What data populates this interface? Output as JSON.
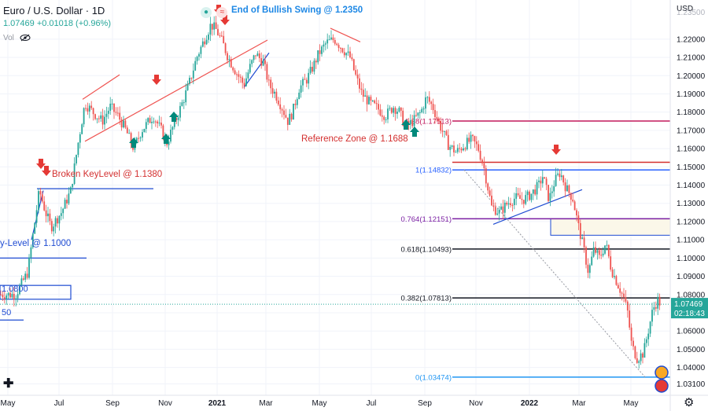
{
  "header": {
    "title": "Euro / U.S. Dollar · 1D",
    "change": "1.07469 +0.01018 (+0.96%)",
    "vol_label": "Vol"
  },
  "price_axis": {
    "currency": "USD",
    "ticks": [
      "1.23500",
      "1.22000",
      "1.21000",
      "1.20000",
      "1.19000",
      "1.18000",
      "1.17000",
      "1.16000",
      "1.15000",
      "1.14000",
      "1.13000",
      "1.12000",
      "1.11000",
      "1.10000",
      "1.09000",
      "1.08000",
      "1.07000",
      "1.06000",
      "1.05000",
      "1.04000",
      "1.03100"
    ],
    "last_price": "1.07469",
    "countdown": "02:18:43"
  },
  "time_axis": [
    "May",
    "Jul",
    "Sep",
    "Nov",
    "2021",
    "Mar",
    "May",
    "Jul",
    "Sep",
    "Nov",
    "2022",
    "Mar",
    "May"
  ],
  "annotations": {
    "bullish_swing": "End of Bullish Swing @ 1.2350",
    "broken_keylevel": "Broken KeyLevel @ 1.1380",
    "key_level": "y-Level @ 1.1000",
    "level_1080": "1.0800",
    "level_50": "50",
    "reference_zone": "Reference Zone @ 1.1688"
  },
  "fib_levels": [
    {
      "label": "1.38(1.17513)",
      "value": 1.17513,
      "color": "#c2185b"
    },
    {
      "label": "1(1.14832)",
      "value": 1.14832,
      "color": "#2962ff"
    },
    {
      "label": "0.764(1.12151)",
      "value": 1.12151,
      "color": "#7b1fa2"
    },
    {
      "label": "0.618(1.10493)",
      "value": 1.10493,
      "color": "#131722"
    },
    {
      "label": "0.382(1.07813)",
      "value": 1.07813,
      "color": "#131722"
    },
    {
      "label": "0(1.03474)",
      "value": 1.03474,
      "color": "#2196f3"
    }
  ],
  "colors": {
    "up": "#26a69a",
    "down": "#ef5350",
    "arrow_up": "#00897b",
    "arrow_down": "#e53935",
    "reference": "#d32f2f",
    "blue": "#1e4bd2",
    "price_tag": "#26a69a"
  },
  "chart_data": {
    "type": "candlestick",
    "symbol": "EUR/USD",
    "interval": "1D",
    "x_labels": [
      "May",
      "Jul",
      "Sep",
      "Nov",
      "2021",
      "Mar",
      "May",
      "Jul",
      "Sep",
      "Nov",
      "2022",
      "Mar",
      "May"
    ],
    "ylim": [
      1.031,
      1.235
    ],
    "close_path": [
      [
        0,
        1.08
      ],
      [
        20,
        1.08
      ],
      [
        35,
        1.092
      ],
      [
        50,
        1.137
      ],
      [
        58,
        1.125
      ],
      [
        65,
        1.117
      ],
      [
        78,
        1.125
      ],
      [
        90,
        1.137
      ],
      [
        100,
        1.165
      ],
      [
        108,
        1.185
      ],
      [
        118,
        1.18
      ],
      [
        130,
        1.175
      ],
      [
        140,
        1.183
      ],
      [
        150,
        1.178
      ],
      [
        160,
        1.17
      ],
      [
        170,
        1.16
      ],
      [
        180,
        1.17
      ],
      [
        195,
        1.178
      ],
      [
        205,
        1.17
      ],
      [
        212,
        1.163
      ],
      [
        220,
        1.172
      ],
      [
        230,
        1.183
      ],
      [
        240,
        1.195
      ],
      [
        250,
        1.21
      ],
      [
        260,
        1.22
      ],
      [
        268,
        1.228
      ],
      [
        275,
        1.225
      ],
      [
        283,
        1.218
      ],
      [
        290,
        1.21
      ],
      [
        300,
        1.202
      ],
      [
        310,
        1.195
      ],
      [
        318,
        1.205
      ],
      [
        325,
        1.212
      ],
      [
        335,
        1.207
      ],
      [
        342,
        1.195
      ],
      [
        350,
        1.19
      ],
      [
        358,
        1.183
      ],
      [
        366,
        1.175
      ],
      [
        372,
        1.18
      ],
      [
        380,
        1.193
      ],
      [
        390,
        1.198
      ],
      [
        398,
        1.205
      ],
      [
        405,
        1.212
      ],
      [
        415,
        1.218
      ],
      [
        425,
        1.22
      ],
      [
        435,
        1.215
      ],
      [
        445,
        1.21
      ],
      [
        452,
        1.2
      ],
      [
        460,
        1.19
      ],
      [
        470,
        1.185
      ],
      [
        480,
        1.182
      ],
      [
        490,
        1.178
      ],
      [
        500,
        1.183
      ],
      [
        508,
        1.18
      ],
      [
        515,
        1.172
      ],
      [
        525,
        1.175
      ],
      [
        535,
        1.18
      ],
      [
        542,
        1.188
      ],
      [
        550,
        1.183
      ],
      [
        560,
        1.172
      ],
      [
        570,
        1.162
      ],
      [
        580,
        1.158
      ],
      [
        590,
        1.162
      ],
      [
        600,
        1.165
      ],
      [
        608,
        1.16
      ],
      [
        615,
        1.15
      ],
      [
        625,
        1.128
      ],
      [
        635,
        1.125
      ],
      [
        645,
        1.13
      ],
      [
        655,
        1.133
      ],
      [
        665,
        1.132
      ],
      [
        675,
        1.135
      ],
      [
        685,
        1.14
      ],
      [
        690,
        1.145
      ],
      [
        698,
        1.132
      ],
      [
        705,
        1.142
      ],
      [
        712,
        1.147
      ],
      [
        720,
        1.138
      ],
      [
        728,
        1.133
      ],
      [
        735,
        1.118
      ],
      [
        742,
        1.105
      ],
      [
        748,
        1.092
      ],
      [
        755,
        1.105
      ],
      [
        762,
        1.1
      ],
      [
        770,
        1.108
      ],
      [
        777,
        1.094
      ],
      [
        785,
        1.086
      ],
      [
        793,
        1.078
      ],
      [
        798,
        1.07
      ],
      [
        803,
        1.052
      ],
      [
        810,
        1.045
      ],
      [
        818,
        1.048
      ],
      [
        824,
        1.06
      ],
      [
        830,
        1.072
      ],
      [
        836,
        1.077
      ],
      [
        840,
        1.0747
      ]
    ]
  }
}
